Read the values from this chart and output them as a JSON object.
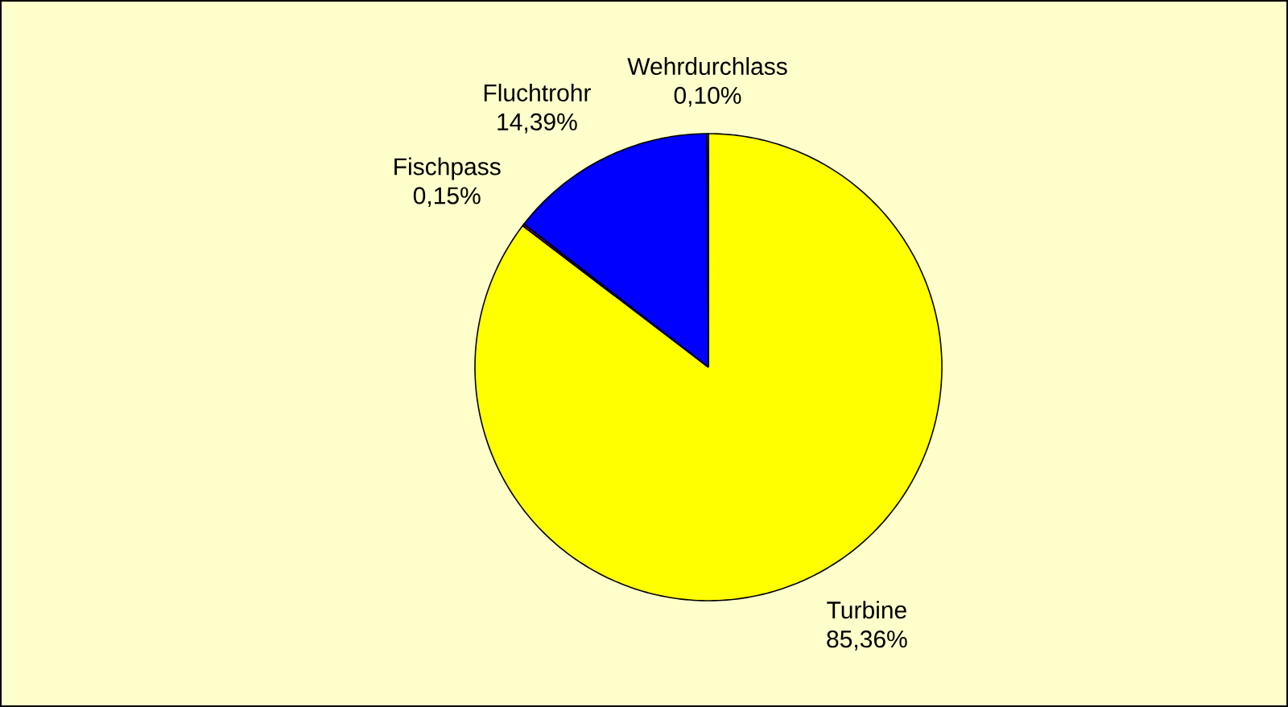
{
  "chart_data": {
    "type": "pie",
    "categories": [
      "Turbine",
      "Fischpass",
      "Fluchtrohr",
      "Wehrdurchlass"
    ],
    "values": [
      85.36,
      0.15,
      14.39,
      0.1
    ],
    "value_labels": [
      "85,36%",
      "0,15%",
      "14,39%",
      "0,10%"
    ],
    "colors": [
      "#ffff00",
      "#800080",
      "#0000ff",
      "#ffffcc"
    ]
  }
}
